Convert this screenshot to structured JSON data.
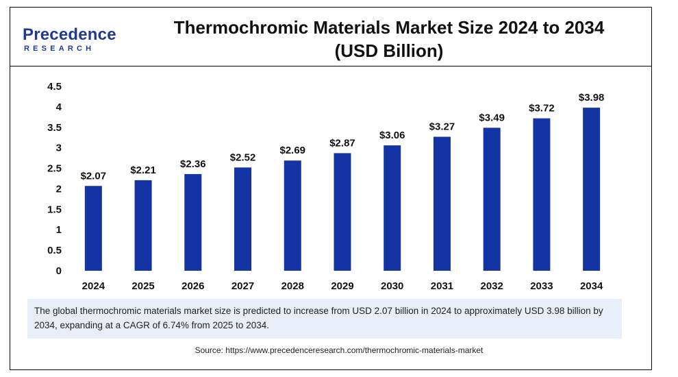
{
  "header": {
    "logo_main": "Precedence",
    "logo_sub": "RESEARCH",
    "title_line1": "Thermochromic Materials Market Size 2024 to 2034",
    "title_line2": "(USD Billion)"
  },
  "colors": {
    "bar": "#1434a4",
    "note_bg": "#e8eef8",
    "logo": "#1f3a8f"
  },
  "chart_data": {
    "type": "bar",
    "title": "Thermochromic Materials Market Size 2024 to 2034 (USD Billion)",
    "categories": [
      "2024",
      "2025",
      "2026",
      "2027",
      "2028",
      "2029",
      "2030",
      "2031",
      "2032",
      "2033",
      "2034"
    ],
    "values": [
      2.07,
      2.21,
      2.36,
      2.52,
      2.69,
      2.87,
      3.06,
      3.27,
      3.49,
      3.72,
      3.98
    ],
    "data_labels": [
      "$2.07",
      "$2.21",
      "$2.36",
      "$2.52",
      "$2.69",
      "$2.87",
      "$3.06",
      "$3.27",
      "$3.49",
      "$3.72",
      "$3.98"
    ],
    "ylim": [
      0,
      4.5
    ],
    "yticks": [
      "0",
      "0.5",
      "1",
      "1.5",
      "2",
      "2.5",
      "3",
      "3.5",
      "4",
      "4.5"
    ],
    "grid": false
  },
  "note": "The global thermochromic materials market size is predicted to increase from USD 2.07 billion in 2024 to approximately USD 3.98 billion by 2034, expanding at a CAGR of 6.74% from 2025 to 2034.",
  "source": "Source: https://www.precedenceresearch.com/thermochromic-materials-market"
}
